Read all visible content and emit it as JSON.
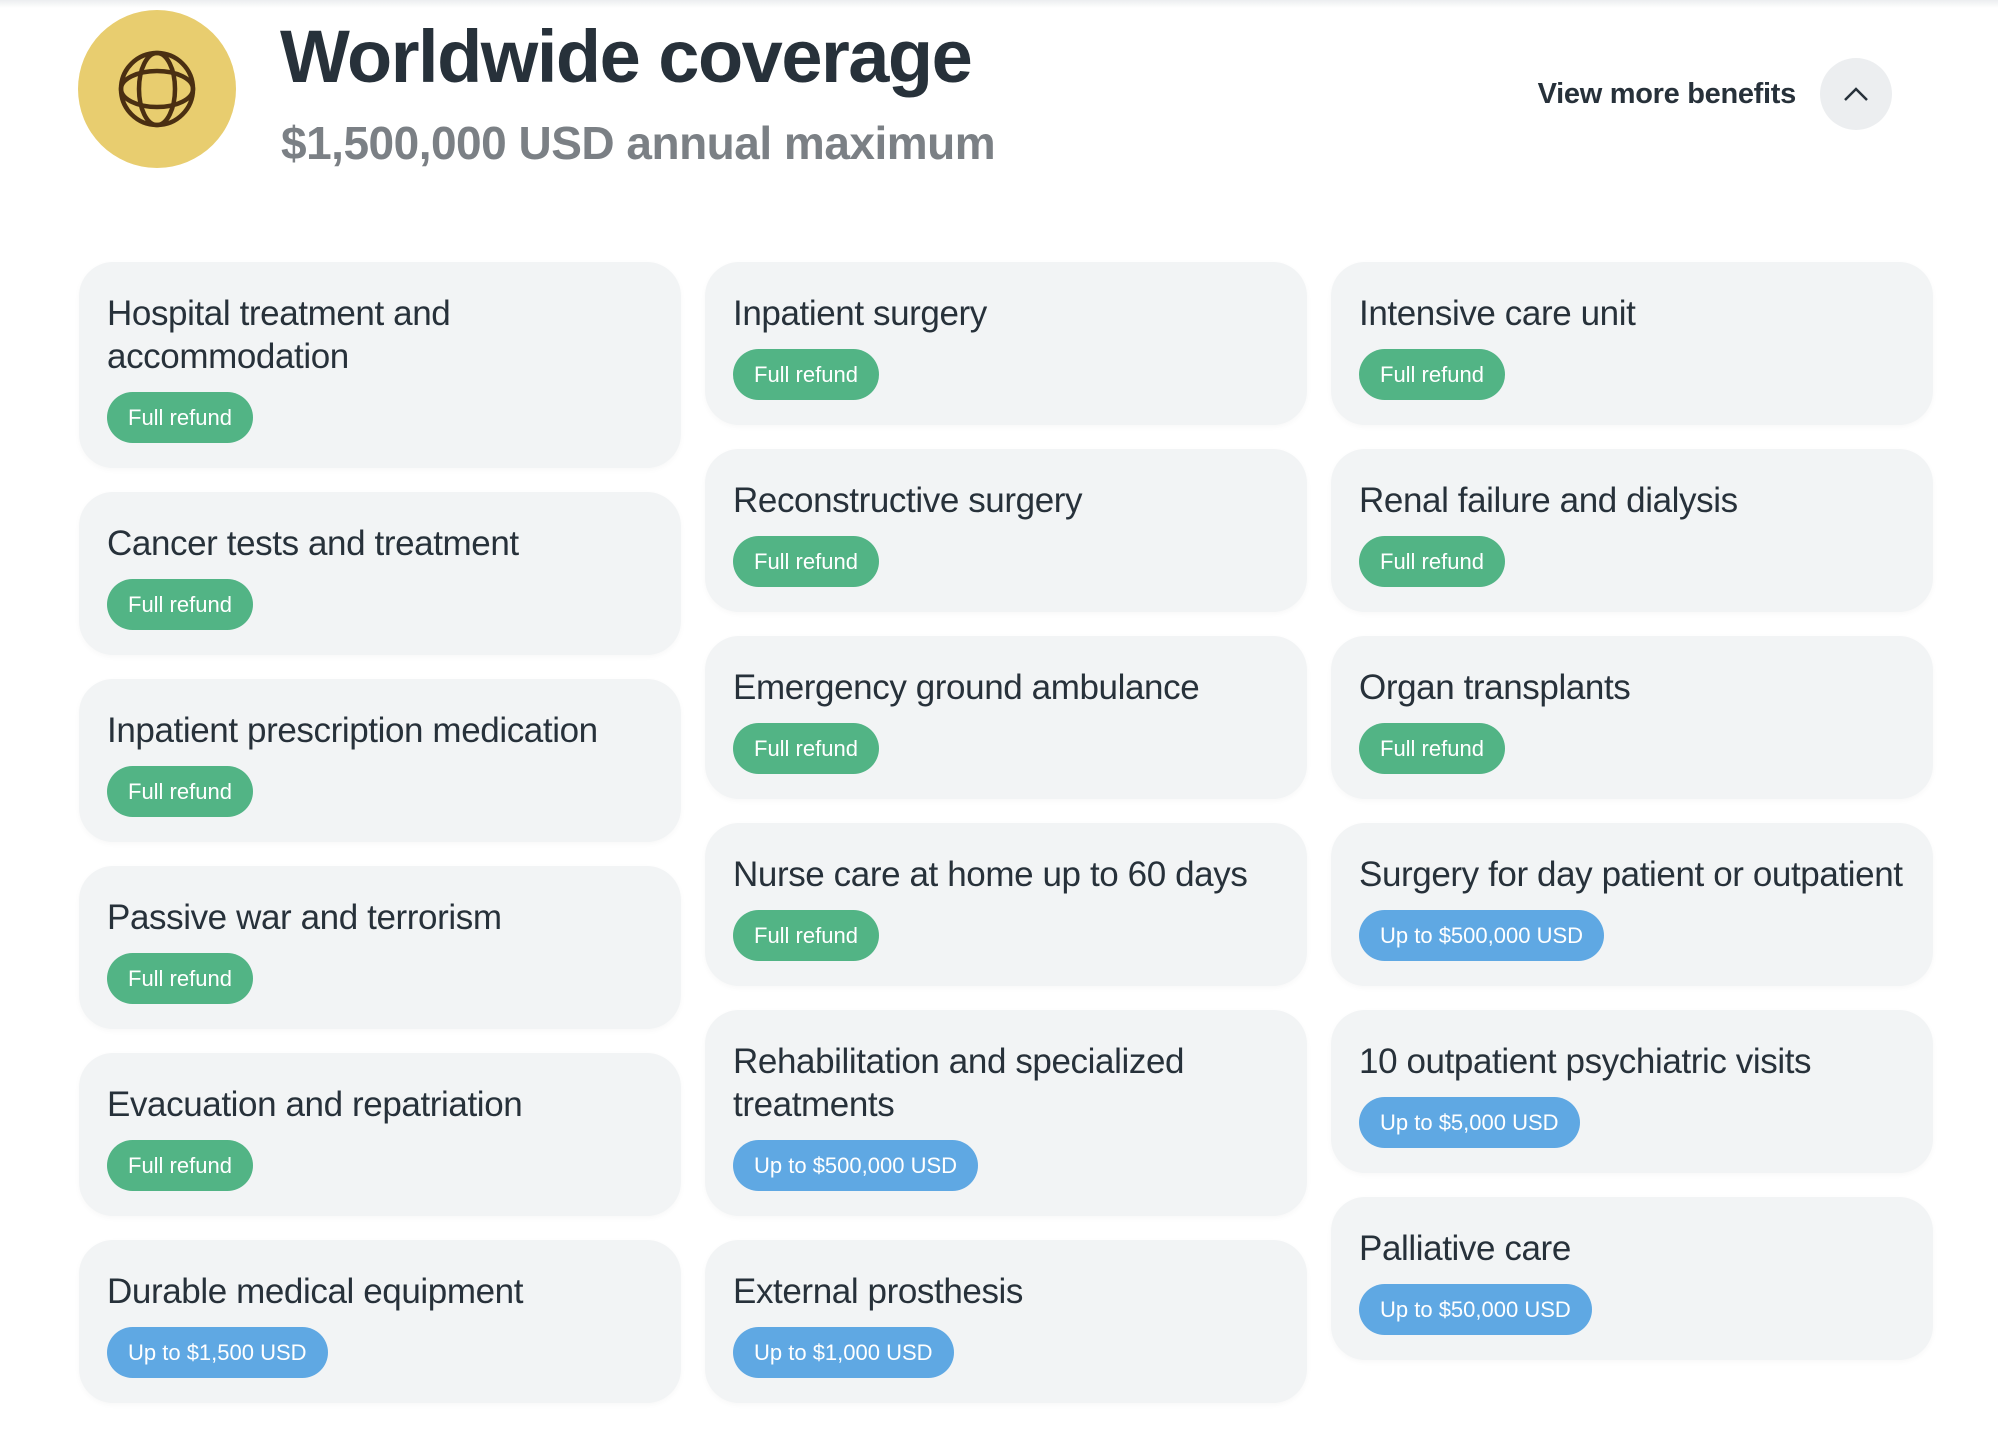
{
  "header": {
    "icon": "globe-icon",
    "title": "Worldwide coverage",
    "subtitle": "$1,500,000 USD annual maximum",
    "view_more_label": "View more benefits",
    "toggle_icon": "chevron-up-icon"
  },
  "colors": {
    "full_refund": "#52b485",
    "limited": "#5fa8e3",
    "icon_bg": "#e8cd6f"
  },
  "columns": [
    [
      {
        "title": "Hospital treatment and accommodation",
        "badge": "Full refund",
        "type": "green"
      },
      {
        "title": "Cancer tests and treatment",
        "badge": "Full refund",
        "type": "green"
      },
      {
        "title": "Inpatient prescription medication",
        "badge": "Full refund",
        "type": "green"
      },
      {
        "title": "Passive war and terrorism",
        "badge": "Full refund",
        "type": "green"
      },
      {
        "title": "Evacuation and repatriation",
        "badge": "Full refund",
        "type": "green"
      },
      {
        "title": "Durable medical equipment",
        "badge": "Up to $1,500 USD",
        "type": "blue"
      }
    ],
    [
      {
        "title": "Inpatient surgery",
        "badge": "Full refund",
        "type": "green"
      },
      {
        "title": "Reconstructive surgery",
        "badge": "Full refund",
        "type": "green"
      },
      {
        "title": "Emergency ground ambulance",
        "badge": "Full refund",
        "type": "green"
      },
      {
        "title": "Nurse care at home up to 60 days",
        "badge": "Full refund",
        "type": "green"
      },
      {
        "title": "Rehabilitation and specialized treatments",
        "badge": "Up to $500,000 USD",
        "type": "blue"
      },
      {
        "title": "External prosthesis",
        "badge": "Up to $1,000 USD",
        "type": "blue"
      }
    ],
    [
      {
        "title": "Intensive care unit",
        "badge": "Full refund",
        "type": "green"
      },
      {
        "title": "Renal failure and dialysis",
        "badge": "Full refund",
        "type": "green"
      },
      {
        "title": "Organ transplants",
        "badge": "Full refund",
        "type": "green"
      },
      {
        "title": "Surgery for day patient or outpatient",
        "badge": "Up to $500,000 USD",
        "type": "blue"
      },
      {
        "title": "10 outpatient psychiatric visits",
        "badge": "Up to $5,000 USD",
        "type": "blue"
      },
      {
        "title": "Palliative care",
        "badge": "Up to $50,000 USD",
        "type": "blue"
      }
    ]
  ]
}
